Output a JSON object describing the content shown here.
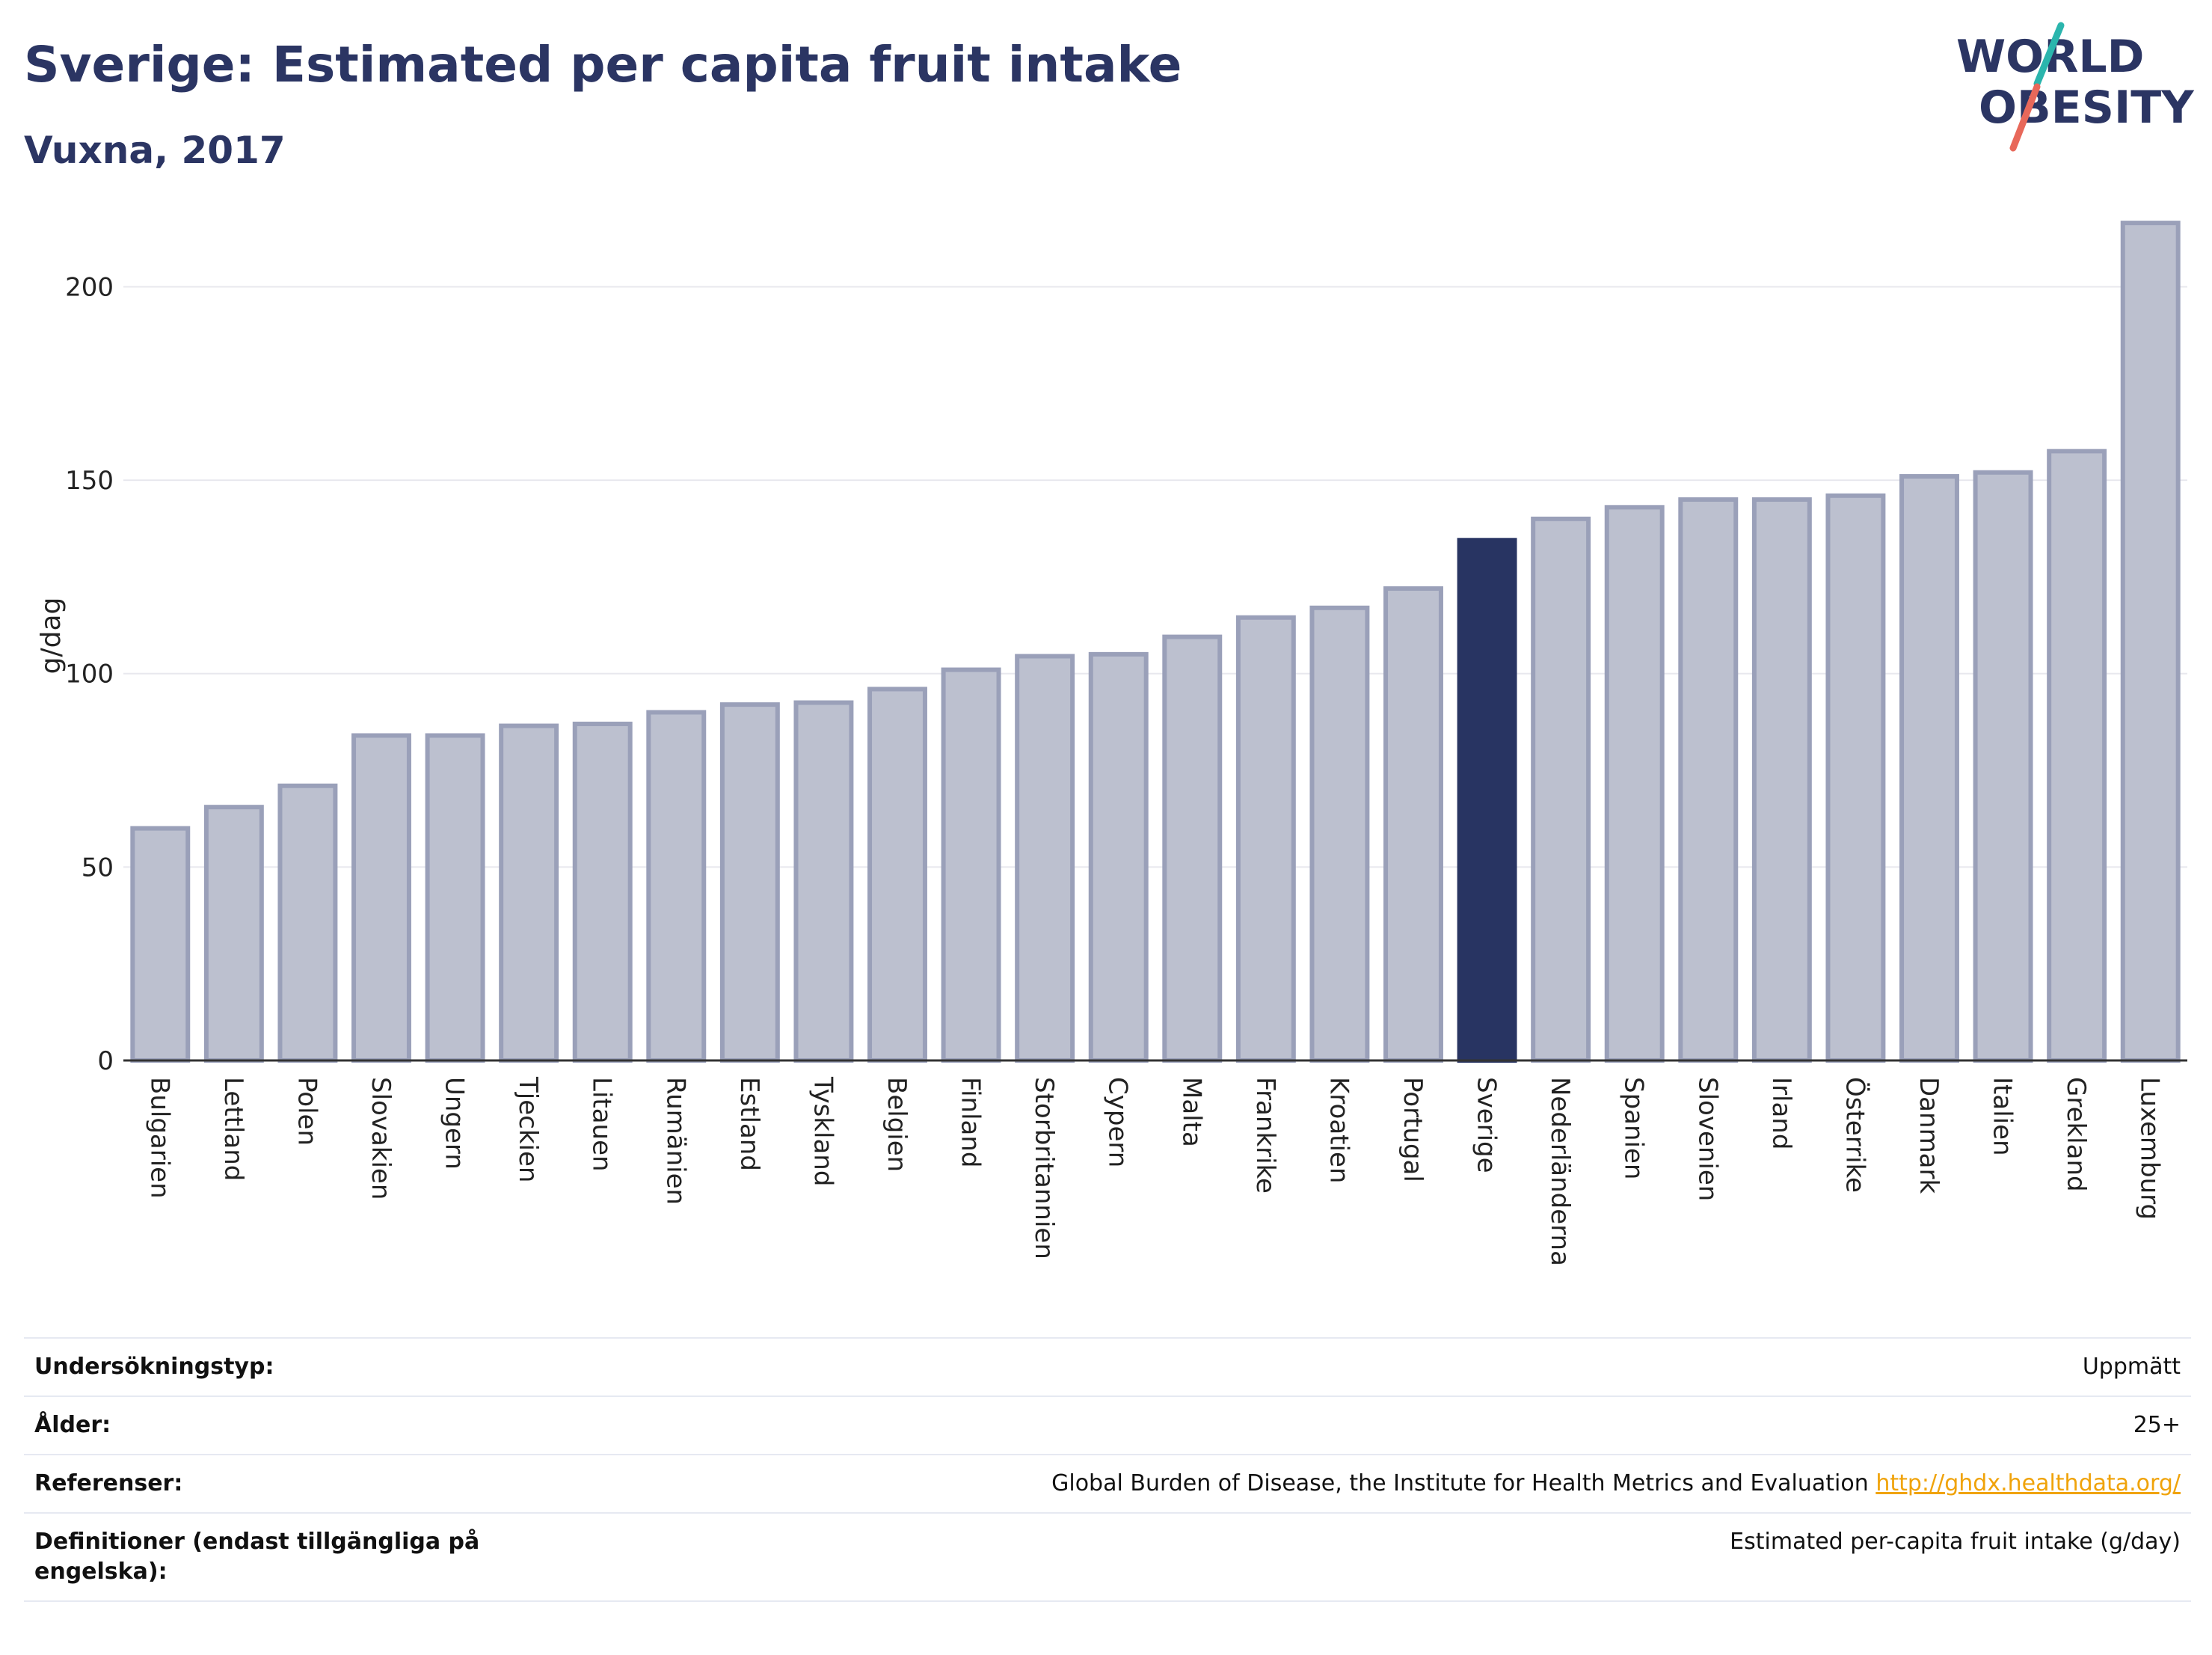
{
  "header": {
    "title": "Sverige: Estimated per capita fruit intake",
    "subtitle": "Vuxna, 2017"
  },
  "logo": {
    "line1": "WORLD",
    "line2": "OBESITY",
    "colors": {
      "text": "#2b3563",
      "slash_teal": "#2bb5ad",
      "slash_coral": "#e8685a"
    }
  },
  "colors": {
    "bar_fill": "#bcc0cf",
    "bar_stroke": "#9aa0b9",
    "highlight_fill": "#283462",
    "grid": "#e8e8ee",
    "axis": "#333333"
  },
  "chart_data": {
    "type": "bar",
    "title": "Sverige: Estimated per capita fruit intake",
    "subtitle": "Vuxna, 2017",
    "xlabel": "",
    "ylabel": "g/dag",
    "ylim": [
      0,
      220
    ],
    "yticks": [
      0,
      50,
      100,
      150,
      200
    ],
    "grid": true,
    "legend": "none",
    "highlight": "Sverige",
    "categories": [
      "Bulgarien",
      "Lettland",
      "Polen",
      "Slovakien",
      "Ungern",
      "Tjeckien",
      "Litauen",
      "Rumänien",
      "Estland",
      "Tyskland",
      "Belgien",
      "Finland",
      "Storbritannien",
      "Cypern",
      "Malta",
      "Frankrike",
      "Kroatien",
      "Portugal",
      "Sverige",
      "Nederländerna",
      "Spanien",
      "Slovenien",
      "Irland",
      "Österrike",
      "Danmark",
      "Italien",
      "Grekland",
      "Luxemburg"
    ],
    "values": [
      60,
      65.5,
      71,
      84,
      84,
      86.5,
      87,
      90,
      92,
      92.5,
      96,
      101,
      104.5,
      105,
      109.5,
      114.5,
      117,
      122,
      134.5,
      140,
      143,
      145,
      145,
      146,
      151,
      152,
      157.5,
      216.5
    ]
  },
  "info_table": [
    {
      "label": "Undersökningstyp:",
      "value": "Uppmätt"
    },
    {
      "label": "Ålder:",
      "value": "25+"
    },
    {
      "label": "Referenser:",
      "value": "Global Burden of Disease, the Institute for Health Metrics and Evaluation",
      "link": "http://ghdx.healthdata.org/"
    },
    {
      "label": "Definitioner (endast tillgängliga på engelska):",
      "value": "Estimated per-capita fruit intake (g/day)"
    }
  ]
}
